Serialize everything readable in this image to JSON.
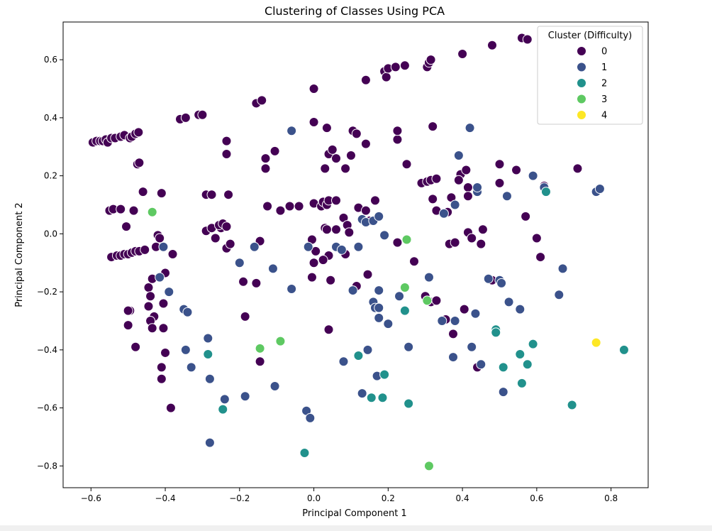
{
  "chart_data": {
    "type": "scatter",
    "title": "Clustering of Classes Using PCA",
    "xlabel": "Principal Component 1",
    "ylabel": "Principal Component 2",
    "xlim": [
      -0.675,
      0.9
    ],
    "ylim": [
      -0.875,
      0.73
    ],
    "xticks": [
      -0.6,
      -0.4,
      -0.2,
      0.0,
      0.2,
      0.4,
      0.6,
      0.8
    ],
    "xtick_labels": [
      "−0.6",
      "−0.4",
      "−0.2",
      "0.0",
      "0.2",
      "0.4",
      "0.6",
      "0.8"
    ],
    "yticks": [
      -0.8,
      -0.6,
      -0.4,
      -0.2,
      0.0,
      0.2,
      0.4,
      0.6
    ],
    "ytick_labels": [
      "−0.8",
      "−0.6",
      "−0.4",
      "−0.2",
      "0.0",
      "0.2",
      "0.4",
      "0.6"
    ],
    "grid": false,
    "legend": {
      "title": "Cluster (Difficulty)",
      "placement": "top-right"
    },
    "series": [
      {
        "name": "0",
        "color": "#440154",
        "points": [
          [
            -0.595,
            0.315
          ],
          [
            -0.585,
            0.32
          ],
          [
            -0.575,
            0.32
          ],
          [
            -0.568,
            0.32
          ],
          [
            -0.56,
            0.325
          ],
          [
            -0.555,
            0.315
          ],
          [
            -0.545,
            0.33
          ],
          [
            -0.535,
            0.33
          ],
          [
            -0.52,
            0.335
          ],
          [
            -0.51,
            0.34
          ],
          [
            -0.495,
            0.33
          ],
          [
            -0.49,
            0.335
          ],
          [
            -0.48,
            0.345
          ],
          [
            -0.472,
            0.35
          ],
          [
            -0.475,
            0.24
          ],
          [
            -0.47,
            0.245
          ],
          [
            -0.55,
            0.08
          ],
          [
            -0.54,
            0.085
          ],
          [
            -0.52,
            0.085
          ],
          [
            -0.485,
            0.08
          ],
          [
            -0.505,
            0.025
          ],
          [
            -0.46,
            0.145
          ],
          [
            -0.41,
            0.14
          ],
          [
            -0.545,
            -0.08
          ],
          [
            -0.53,
            -0.075
          ],
          [
            -0.52,
            -0.075
          ],
          [
            -0.51,
            -0.07
          ],
          [
            -0.5,
            -0.07
          ],
          [
            -0.49,
            -0.065
          ],
          [
            -0.48,
            -0.06
          ],
          [
            -0.47,
            -0.06
          ],
          [
            -0.455,
            -0.055
          ],
          [
            -0.42,
            -0.005
          ],
          [
            -0.415,
            -0.015
          ],
          [
            -0.425,
            -0.045
          ],
          [
            -0.38,
            -0.07
          ],
          [
            -0.445,
            -0.185
          ],
          [
            -0.435,
            -0.155
          ],
          [
            -0.44,
            -0.215
          ],
          [
            -0.445,
            -0.25
          ],
          [
            -0.43,
            -0.285
          ],
          [
            -0.44,
            -0.3
          ],
          [
            -0.435,
            -0.325
          ],
          [
            -0.405,
            -0.24
          ],
          [
            -0.4,
            -0.135
          ],
          [
            -0.405,
            -0.325
          ],
          [
            -0.495,
            -0.265
          ],
          [
            -0.5,
            -0.265
          ],
          [
            -0.5,
            -0.315
          ],
          [
            -0.48,
            -0.39
          ],
          [
            -0.4,
            -0.41
          ],
          [
            -0.41,
            -0.46
          ],
          [
            -0.41,
            -0.5
          ],
          [
            -0.385,
            -0.6
          ],
          [
            -0.36,
            0.395
          ],
          [
            -0.345,
            0.4
          ],
          [
            -0.31,
            0.41
          ],
          [
            -0.3,
            0.41
          ],
          [
            -0.29,
            0.135
          ],
          [
            -0.275,
            0.135
          ],
          [
            -0.23,
            0.135
          ],
          [
            -0.29,
            0.01
          ],
          [
            -0.275,
            0.02
          ],
          [
            -0.25,
            0.02
          ],
          [
            -0.255,
            0.03
          ],
          [
            -0.245,
            0.035
          ],
          [
            -0.265,
            -0.015
          ],
          [
            -0.235,
            0.025
          ],
          [
            -0.235,
            -0.05
          ],
          [
            -0.225,
            -0.035
          ],
          [
            -0.235,
            0.32
          ],
          [
            -0.235,
            0.275
          ],
          [
            -0.155,
            0.45
          ],
          [
            -0.14,
            0.46
          ],
          [
            -0.13,
            0.26
          ],
          [
            -0.13,
            0.225
          ],
          [
            -0.105,
            0.285
          ],
          [
            -0.125,
            0.095
          ],
          [
            -0.065,
            0.095
          ],
          [
            -0.04,
            0.095
          ],
          [
            -0.09,
            0.08
          ],
          [
            -0.19,
            -0.165
          ],
          [
            -0.155,
            -0.17
          ],
          [
            -0.185,
            -0.285
          ],
          [
            -0.145,
            -0.025
          ],
          [
            -0.145,
            -0.44
          ],
          [
            0.0,
            0.5
          ],
          [
            0.0,
            0.385
          ],
          [
            0.035,
            0.365
          ],
          [
            0.04,
            0.275
          ],
          [
            0.05,
            0.29
          ],
          [
            0.06,
            0.26
          ],
          [
            0.03,
            0.225
          ],
          [
            0.085,
            0.225
          ],
          [
            0.0,
            0.105
          ],
          [
            0.02,
            0.095
          ],
          [
            0.025,
            0.11
          ],
          [
            0.035,
            0.1
          ],
          [
            0.04,
            0.115
          ],
          [
            0.06,
            0.115
          ],
          [
            0.08,
            0.055
          ],
          [
            0.03,
            0.02
          ],
          [
            0.035,
            0.015
          ],
          [
            0.06,
            0.015
          ],
          [
            0.09,
            0.03
          ],
          [
            0.095,
            0.005
          ],
          [
            0.085,
            -0.07
          ],
          [
            -0.005,
            -0.02
          ],
          [
            0.005,
            -0.06
          ],
          [
            0.04,
            -0.075
          ],
          [
            0.045,
            -0.16
          ],
          [
            -0.005,
            -0.15
          ],
          [
            0.0,
            -0.1
          ],
          [
            0.025,
            -0.09
          ],
          [
            0.04,
            -0.33
          ],
          [
            0.105,
            0.355
          ],
          [
            0.115,
            0.345
          ],
          [
            0.1,
            0.27
          ],
          [
            0.14,
            0.31
          ],
          [
            0.14,
            0.53
          ],
          [
            0.19,
            0.56
          ],
          [
            0.195,
            0.54
          ],
          [
            0.2,
            0.57
          ],
          [
            0.22,
            0.575
          ],
          [
            0.245,
            0.58
          ],
          [
            0.12,
            0.09
          ],
          [
            0.14,
            0.08
          ],
          [
            0.15,
            0.045
          ],
          [
            0.165,
            0.115
          ],
          [
            0.225,
            0.325
          ],
          [
            0.225,
            0.355
          ],
          [
            0.25,
            0.24
          ],
          [
            0.115,
            -0.18
          ],
          [
            0.145,
            -0.14
          ],
          [
            0.225,
            -0.03
          ],
          [
            0.27,
            -0.095
          ],
          [
            0.305,
            0.575
          ],
          [
            0.31,
            0.59
          ],
          [
            0.315,
            0.6
          ],
          [
            0.32,
            0.37
          ],
          [
            0.29,
            0.175
          ],
          [
            0.305,
            0.18
          ],
          [
            0.315,
            0.185
          ],
          [
            0.33,
            0.19
          ],
          [
            0.32,
            0.12
          ],
          [
            0.33,
            0.08
          ],
          [
            0.36,
            0.075
          ],
          [
            0.37,
            0.125
          ],
          [
            0.365,
            -0.035
          ],
          [
            0.38,
            -0.03
          ],
          [
            0.4,
            0.62
          ],
          [
            0.48,
            0.65
          ],
          [
            0.56,
            0.675
          ],
          [
            0.575,
            0.67
          ],
          [
            0.395,
            0.205
          ],
          [
            0.41,
            0.22
          ],
          [
            0.415,
            0.16
          ],
          [
            0.415,
            0.13
          ],
          [
            0.39,
            0.185
          ],
          [
            0.415,
            0.005
          ],
          [
            0.425,
            -0.015
          ],
          [
            0.45,
            -0.035
          ],
          [
            0.455,
            0.015
          ],
          [
            0.5,
            0.24
          ],
          [
            0.545,
            0.22
          ],
          [
            0.5,
            0.175
          ],
          [
            0.57,
            0.06
          ],
          [
            0.6,
            -0.015
          ],
          [
            0.61,
            -0.08
          ],
          [
            0.62,
            0.165
          ],
          [
            0.71,
            0.225
          ],
          [
            0.3,
            -0.215
          ],
          [
            0.315,
            -0.235
          ],
          [
            0.33,
            -0.23
          ],
          [
            0.355,
            -0.295
          ],
          [
            0.375,
            -0.345
          ],
          [
            0.405,
            -0.26
          ],
          [
            0.44,
            -0.46
          ],
          [
            0.48,
            -0.16
          ],
          [
            0.5,
            -0.16
          ]
        ]
      },
      {
        "name": "1",
        "color": "#3b528b",
        "points": [
          [
            -0.06,
            0.355
          ],
          [
            0.35,
            0.07
          ],
          [
            0.38,
            0.1
          ],
          [
            0.39,
            0.27
          ],
          [
            0.42,
            0.365
          ],
          [
            0.44,
            0.145
          ],
          [
            0.44,
            0.16
          ],
          [
            0.52,
            0.13
          ],
          [
            0.59,
            0.2
          ],
          [
            0.62,
            0.16
          ],
          [
            0.76,
            0.145
          ],
          [
            0.77,
            0.155
          ],
          [
            -0.405,
            -0.045
          ],
          [
            -0.415,
            -0.15
          ],
          [
            -0.39,
            -0.2
          ],
          [
            -0.35,
            -0.26
          ],
          [
            -0.34,
            -0.27
          ],
          [
            -0.345,
            -0.4
          ],
          [
            -0.33,
            -0.46
          ],
          [
            -0.285,
            -0.36
          ],
          [
            -0.28,
            -0.5
          ],
          [
            -0.28,
            -0.72
          ],
          [
            -0.24,
            -0.57
          ],
          [
            -0.185,
            -0.56
          ],
          [
            -0.105,
            -0.525
          ],
          [
            -0.2,
            -0.1
          ],
          [
            -0.16,
            -0.045
          ],
          [
            -0.11,
            -0.12
          ],
          [
            -0.06,
            -0.19
          ],
          [
            -0.015,
            -0.045
          ],
          [
            0.06,
            -0.045
          ],
          [
            0.075,
            -0.055
          ],
          [
            0.12,
            -0.045
          ],
          [
            0.13,
            0.05
          ],
          [
            0.14,
            0.04
          ],
          [
            0.16,
            0.045
          ],
          [
            0.175,
            0.06
          ],
          [
            0.19,
            -0.005
          ],
          [
            0.105,
            -0.195
          ],
          [
            0.16,
            -0.235
          ],
          [
            0.165,
            -0.255
          ],
          [
            0.175,
            -0.255
          ],
          [
            0.175,
            -0.195
          ],
          [
            0.175,
            -0.29
          ],
          [
            0.2,
            -0.31
          ],
          [
            0.23,
            -0.215
          ],
          [
            0.255,
            -0.39
          ],
          [
            0.13,
            -0.55
          ],
          [
            0.145,
            -0.4
          ],
          [
            0.17,
            -0.49
          ],
          [
            0.08,
            -0.44
          ],
          [
            -0.02,
            -0.61
          ],
          [
            -0.01,
            -0.635
          ],
          [
            0.31,
            -0.15
          ],
          [
            0.345,
            -0.3
          ],
          [
            0.375,
            -0.425
          ],
          [
            0.38,
            -0.3
          ],
          [
            0.425,
            -0.39
          ],
          [
            0.435,
            -0.275
          ],
          [
            0.45,
            -0.45
          ],
          [
            0.47,
            -0.155
          ],
          [
            0.5,
            -0.16
          ],
          [
            0.505,
            -0.17
          ],
          [
            0.51,
            -0.545
          ],
          [
            0.525,
            -0.235
          ],
          [
            0.555,
            -0.26
          ],
          [
            0.67,
            -0.12
          ],
          [
            0.66,
            -0.21
          ]
        ]
      },
      {
        "name": "2",
        "color": "#21918c",
        "points": [
          [
            -0.285,
            -0.415
          ],
          [
            -0.245,
            -0.605
          ],
          [
            -0.025,
            -0.755
          ],
          [
            0.12,
            -0.42
          ],
          [
            0.155,
            -0.565
          ],
          [
            0.185,
            -0.565
          ],
          [
            0.19,
            -0.485
          ],
          [
            0.245,
            -0.265
          ],
          [
            0.255,
            -0.585
          ],
          [
            0.49,
            -0.33
          ],
          [
            0.49,
            -0.34
          ],
          [
            0.51,
            -0.46
          ],
          [
            0.555,
            -0.415
          ],
          [
            0.56,
            -0.515
          ],
          [
            0.575,
            -0.45
          ],
          [
            0.59,
            -0.38
          ],
          [
            0.625,
            0.145
          ],
          [
            0.695,
            -0.59
          ],
          [
            0.835,
            -0.4
          ]
        ]
      },
      {
        "name": "3",
        "color": "#5ec962",
        "points": [
          [
            -0.435,
            0.075
          ],
          [
            -0.145,
            -0.395
          ],
          [
            -0.09,
            -0.37
          ],
          [
            0.25,
            -0.02
          ],
          [
            0.245,
            -0.185
          ],
          [
            0.305,
            -0.23
          ],
          [
            0.31,
            -0.8
          ]
        ]
      },
      {
        "name": "4",
        "color": "#fde725",
        "points": [
          [
            0.76,
            -0.375
          ]
        ]
      }
    ]
  }
}
